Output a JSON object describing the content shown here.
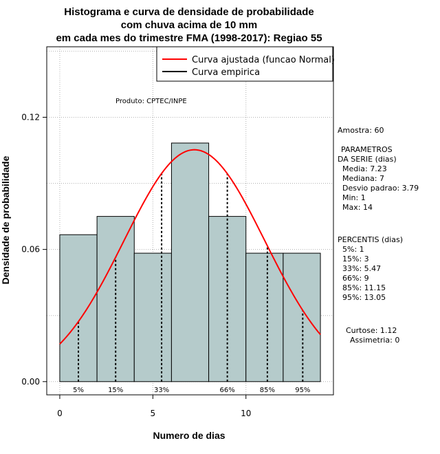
{
  "chart_data": {
    "type": "bar",
    "title": [
      "Histograma e curva de densidade de probabilidade",
      "com chuva acima de 10 mm",
      "em cada mes do trimestre FMA (1998-2017): Regiao 55"
    ],
    "xlabel": "Numero de dias",
    "ylabel": "Densidade de probabilidade",
    "xlim": [
      -0.7,
      14.7
    ],
    "ylim": [
      -0.006,
      0.152
    ],
    "x_ticks": [
      0,
      5,
      10
    ],
    "y_ticks": [
      0.0,
      0.06,
      0.12
    ],
    "y_tick_labels": [
      "0.00",
      "0.06",
      "0.12"
    ],
    "grid": true,
    "bar_color": "#b5cbcb",
    "bins": [
      {
        "start": 0,
        "end": 2,
        "density": 0.0667
      },
      {
        "start": 2,
        "end": 4,
        "density": 0.075
      },
      {
        "start": 4,
        "end": 6,
        "density": 0.0583
      },
      {
        "start": 6,
        "end": 8,
        "density": 0.1083
      },
      {
        "start": 8,
        "end": 10,
        "density": 0.075
      },
      {
        "start": 10,
        "end": 12,
        "density": 0.0583
      },
      {
        "start": 12,
        "end": 14,
        "density": 0.0583
      }
    ],
    "normal_fit": {
      "mean": 7.23,
      "sd": 3.79,
      "from": 0,
      "to": 14,
      "color": "#ff0000"
    },
    "percentile_markers": [
      {
        "label": "5%",
        "x": 1
      },
      {
        "label": "15%",
        "x": 3
      },
      {
        "label": "33%",
        "x": 5.47
      },
      {
        "label": "66%",
        "x": 9
      },
      {
        "label": "85%",
        "x": 11.15
      },
      {
        "label": "95%",
        "x": 13.05
      }
    ],
    "legend": {
      "placement": "top-right",
      "entries": [
        {
          "label": "Curva ajustada (funcao Normal)",
          "color": "#ff0000"
        },
        {
          "label": "Curva empirica",
          "color": "#000000"
        }
      ]
    },
    "annotation": "Produto: CPTEC/INPE"
  },
  "stats_panel": {
    "amostra": "Amostra: 60",
    "parametros_title": "PARAMETROS",
    "parametros_subtitle": "DA SERIE (dias)",
    "parametros": [
      "Media: 7.23",
      "Mediana: 7",
      "Desvio padrao: 3.79",
      "Min: 1",
      "Max: 14"
    ],
    "percentis_title": "PERCENTIS (dias)",
    "percentis": [
      "5%: 1",
      "15%: 3",
      "33%: 5.47",
      "66%: 9",
      "85%: 11.15",
      "95%: 13.05"
    ],
    "curtose": "Curtose: 1.12",
    "assimetria": "Assimetria: 0"
  }
}
